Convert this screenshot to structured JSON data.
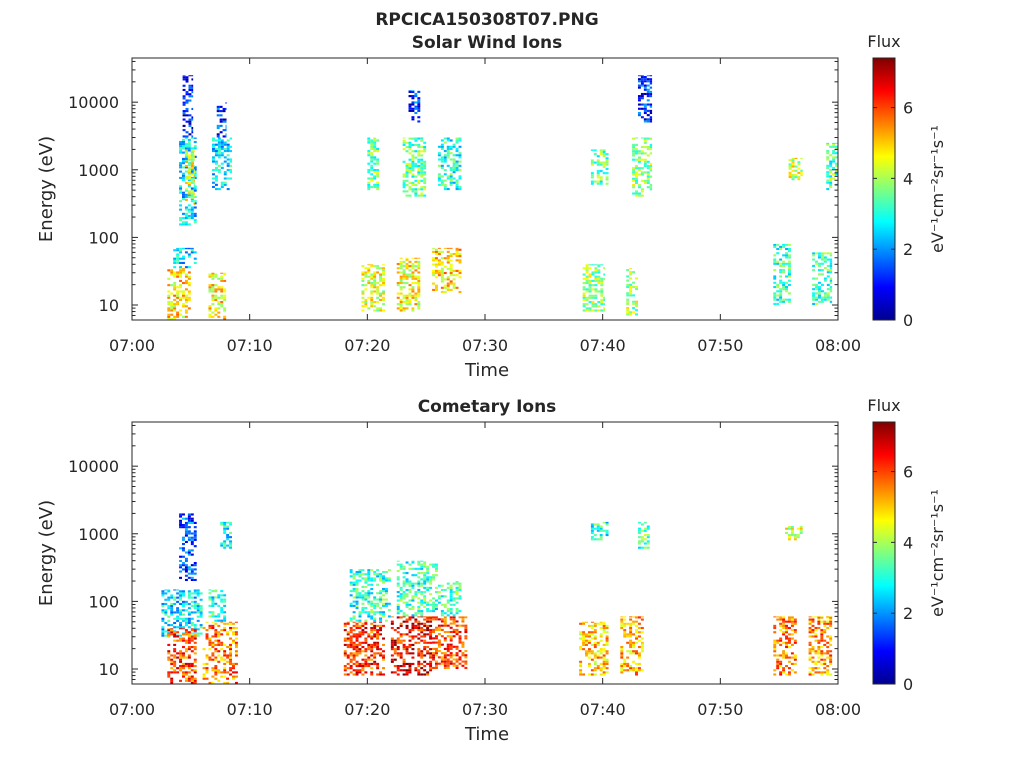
{
  "figure_title": "RPCICA150308T07.PNG",
  "colorbar_label": "Flux",
  "colorbar_unit": "eV⁻¹cm⁻²sr⁻¹s⁻¹",
  "chart_data": [
    {
      "type": "heatmap",
      "title": "Solar Wind Ions",
      "xlabel": "Time",
      "ylabel": "Energy (eV)",
      "x_ticks": [
        "07:00",
        "07:10",
        "07:20",
        "07:30",
        "07:40",
        "07:50",
        "08:00"
      ],
      "y_ticks": [
        "10",
        "100",
        "1000",
        "10000"
      ],
      "y_scale": "log",
      "xlim": [
        "07:00",
        "08:00"
      ],
      "ylim": [
        6,
        45000
      ],
      "colorbar": {
        "label": "Flux",
        "range": [
          0,
          7.4
        ],
        "ticks": [
          "0",
          "2",
          "4",
          "6"
        ],
        "colormap": "jet"
      },
      "blocks": [
        {
          "t": [
            "07:03.0",
            "07:05.0"
          ],
          "e": [
            6,
            35
          ],
          "flux": 4.8
        },
        {
          "t": [
            "07:03.5",
            "07:05.5"
          ],
          "e": [
            35,
            70
          ],
          "flux": 2.5
        },
        {
          "t": [
            "07:04.0",
            "07:05.5"
          ],
          "e": [
            150,
            3000
          ],
          "flux": 2.6
        },
        {
          "t": [
            "07:04.5",
            "07:05.3"
          ],
          "e": [
            300,
            2000
          ],
          "flux": 4.4
        },
        {
          "t": [
            "07:04.3",
            "07:05.2"
          ],
          "e": [
            3000,
            25000
          ],
          "flux": 1.0
        },
        {
          "t": [
            "07:06.5",
            "07:08.0"
          ],
          "e": [
            6,
            30
          ],
          "flux": 4.7
        },
        {
          "t": [
            "07:06.8",
            "07:08.5"
          ],
          "e": [
            500,
            3000
          ],
          "flux": 2.6
        },
        {
          "t": [
            "07:07.2",
            "07:08.0"
          ],
          "e": [
            3000,
            10000
          ],
          "flux": 1.2
        },
        {
          "t": [
            "07:19.5",
            "07:21.5"
          ],
          "e": [
            8,
            40
          ],
          "flux": 4.4
        },
        {
          "t": [
            "07:20.0",
            "07:21.0"
          ],
          "e": [
            500,
            3000
          ],
          "flux": 3.6
        },
        {
          "t": [
            "07:22.5",
            "07:24.5"
          ],
          "e": [
            8,
            50
          ],
          "flux": 4.6
        },
        {
          "t": [
            "07:23.0",
            "07:25.0"
          ],
          "e": [
            400,
            3000
          ],
          "flux": 3.5
        },
        {
          "t": [
            "07:23.5",
            "07:24.5"
          ],
          "e": [
            5000,
            15000
          ],
          "flux": 1.3
        },
        {
          "t": [
            "07:25.5",
            "07:28.0"
          ],
          "e": [
            15,
            70
          ],
          "flux": 4.9
        },
        {
          "t": [
            "07:26.0",
            "07:28.0"
          ],
          "e": [
            500,
            3000
          ],
          "flux": 3.0
        },
        {
          "t": [
            "07:38.3",
            "07:40.2"
          ],
          "e": [
            8,
            40
          ],
          "flux": 3.9
        },
        {
          "t": [
            "07:39.0",
            "07:40.5"
          ],
          "e": [
            600,
            2000
          ],
          "flux": 3.5
        },
        {
          "t": [
            "07:42.0",
            "07:43.0"
          ],
          "e": [
            7,
            35
          ],
          "flux": 4.0
        },
        {
          "t": [
            "07:42.5",
            "07:44.2"
          ],
          "e": [
            400,
            3000
          ],
          "flux": 3.8
        },
        {
          "t": [
            "07:43.0",
            "07:44.2"
          ],
          "e": [
            5000,
            25000
          ],
          "flux": 1.2
        },
        {
          "t": [
            "07:54.5",
            "07:56.0"
          ],
          "e": [
            10,
            80
          ],
          "flux": 3.2
        },
        {
          "t": [
            "07:55.8",
            "07:57.0"
          ],
          "e": [
            700,
            1500
          ],
          "flux": 4.3
        },
        {
          "t": [
            "07:57.8",
            "07:59.5"
          ],
          "e": [
            10,
            60
          ],
          "flux": 3.3
        },
        {
          "t": [
            "07:59.0",
            "08:00.0"
          ],
          "e": [
            500,
            2500
          ],
          "flux": 3.4
        }
      ]
    },
    {
      "type": "heatmap",
      "title": "Cometary Ions",
      "xlabel": "Time",
      "ylabel": "Energy (eV)",
      "x_ticks": [
        "07:00",
        "07:10",
        "07:20",
        "07:30",
        "07:40",
        "07:50",
        "08:00"
      ],
      "y_ticks": [
        "10",
        "100",
        "1000",
        "10000"
      ],
      "y_scale": "log",
      "xlim": [
        "07:00",
        "08:00"
      ],
      "ylim": [
        6,
        45000
      ],
      "colorbar": {
        "label": "Flux",
        "range": [
          0,
          7.4
        ],
        "ticks": [
          "0",
          "2",
          "4",
          "6"
        ],
        "colormap": "jet"
      },
      "blocks": [
        {
          "t": [
            "07:02.5",
            "07:06.0"
          ],
          "e": [
            30,
            150
          ],
          "flux": 2.6
        },
        {
          "t": [
            "07:03.0",
            "07:05.5"
          ],
          "e": [
            6,
            40
          ],
          "flux": 6.0
        },
        {
          "t": [
            "07:04.0",
            "07:05.5"
          ],
          "e": [
            200,
            2000
          ],
          "flux": 1.5
        },
        {
          "t": [
            "07:06.0",
            "07:09.0"
          ],
          "e": [
            6,
            50
          ],
          "flux": 5.6
        },
        {
          "t": [
            "07:06.5",
            "07:08.0"
          ],
          "e": [
            50,
            150
          ],
          "flux": 3.0
        },
        {
          "t": [
            "07:07.5",
            "07:08.5"
          ],
          "e": [
            600,
            1500
          ],
          "flux": 2.8
        },
        {
          "t": [
            "07:18.0",
            "07:21.5"
          ],
          "e": [
            8,
            50
          ],
          "flux": 6.1
        },
        {
          "t": [
            "07:18.5",
            "07:22.0"
          ],
          "e": [
            50,
            300
          ],
          "flux": 3.1
        },
        {
          "t": [
            "07:22.0",
            "07:25.5"
          ],
          "e": [
            8,
            60
          ],
          "flux": 6.5
        },
        {
          "t": [
            "07:22.5",
            "07:26.0"
          ],
          "e": [
            60,
            400
          ],
          "flux": 3.2
        },
        {
          "t": [
            "07:25.5",
            "07:28.5"
          ],
          "e": [
            10,
            60
          ],
          "flux": 6.0
        },
        {
          "t": [
            "07:26.0",
            "07:28.0"
          ],
          "e": [
            60,
            200
          ],
          "flux": 3.4
        },
        {
          "t": [
            "07:38.0",
            "07:40.5"
          ],
          "e": [
            8,
            50
          ],
          "flux": 5.0
        },
        {
          "t": [
            "07:41.5",
            "07:43.5"
          ],
          "e": [
            8,
            60
          ],
          "flux": 5.2
        },
        {
          "t": [
            "07:39.0",
            "07:40.5"
          ],
          "e": [
            800,
            1500
          ],
          "flux": 3.0
        },
        {
          "t": [
            "07:43.0",
            "07:44.0"
          ],
          "e": [
            600,
            1500
          ],
          "flux": 3.4
        },
        {
          "t": [
            "07:54.5",
            "07:56.5"
          ],
          "e": [
            8,
            60
          ],
          "flux": 5.6
        },
        {
          "t": [
            "07:57.5",
            "07:59.5"
          ],
          "e": [
            8,
            60
          ],
          "flux": 5.4
        },
        {
          "t": [
            "07:55.5",
            "07:57.0"
          ],
          "e": [
            800,
            1300
          ],
          "flux": 4.2
        }
      ]
    }
  ]
}
